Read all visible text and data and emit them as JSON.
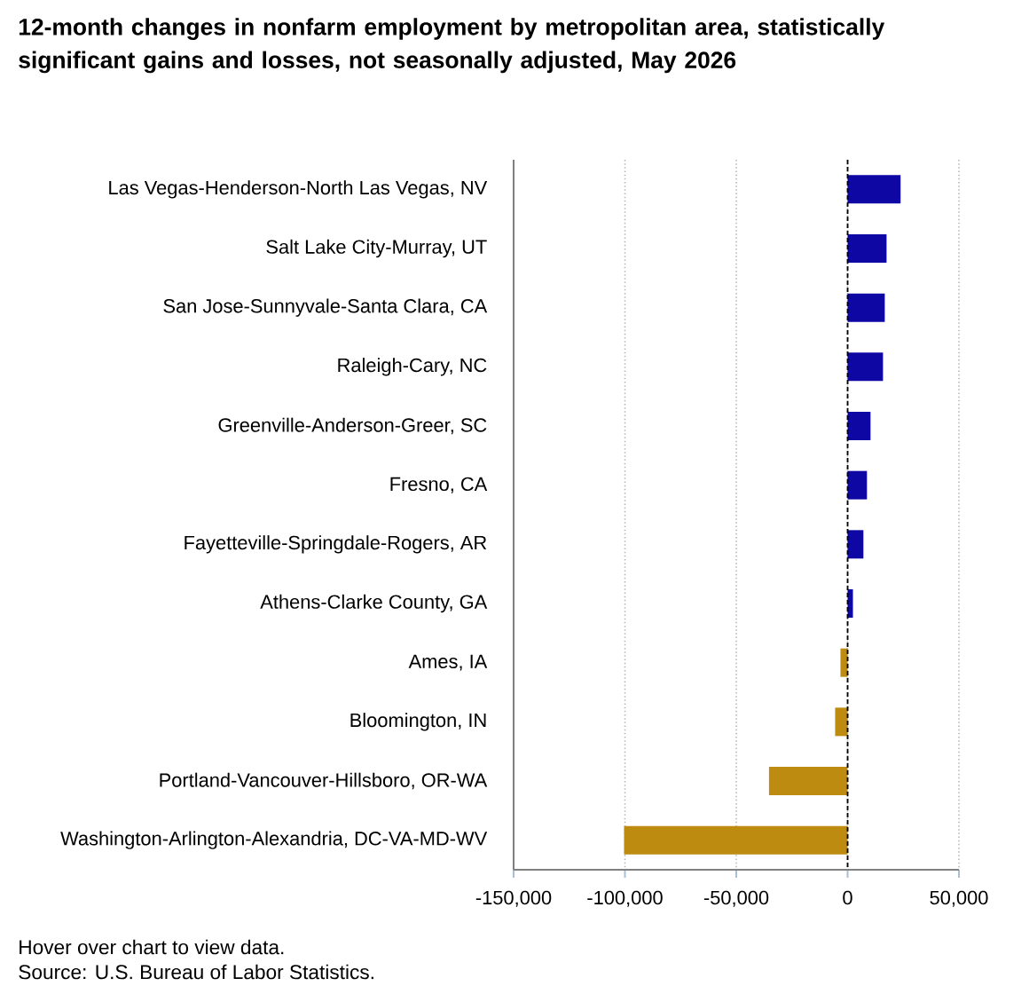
{
  "chart_data": {
    "type": "bar",
    "orientation": "horizontal",
    "title": "12-month changes in nonfarm employment by metropolitan area, statistically significant gains and losses, not seasonally adjusted, May 2026",
    "categories": [
      "Las Vegas-Henderson-North Las Vegas, NV",
      "Salt Lake City-Murray, UT",
      "San Jose-Sunnyvale-Santa Clara, CA",
      "Raleigh-Cary, NC",
      "Greenville-Anderson-Greer, SC",
      "Fresno, CA",
      "Fayetteville-Springdale-Rogers, AR",
      "Athens-Clarke County, GA",
      "Ames, IA",
      "Bloomington, IN",
      "Portland-Vancouver-Hillsboro, OR-WA",
      "Washington-Arlington-Alexandria, DC-VA-MD-WV"
    ],
    "values": [
      23800,
      17500,
      16700,
      15900,
      10300,
      8700,
      7100,
      2400,
      -3200,
      -5600,
      -35300,
      -100400
    ],
    "colors": [
      "#0f07a3",
      "#0f07a3",
      "#0f07a3",
      "#0f07a3",
      "#0f07a3",
      "#0f07a3",
      "#0f07a3",
      "#0f07a3",
      "#bd8b0f",
      "#bd8b0f",
      "#bd8b0f",
      "#bd8b0f"
    ],
    "xlim": [
      -150000,
      50000
    ],
    "xticks": [
      {
        "value": -150000,
        "label": "-150,000"
      },
      {
        "value": -100000,
        "label": "-100,000"
      },
      {
        "value": -50000,
        "label": "-50,000"
      },
      0,
      {
        "value": 50000,
        "label": "50,000"
      }
    ],
    "grid": "x",
    "ref_lines": [
      {
        "axis": "x",
        "value": 0,
        "color": "#000000",
        "line_style": "dashed"
      }
    ],
    "annotations": [
      "Hover over chart to view data.",
      "Source: U.S. Bureau of Labor Statistics."
    ]
  }
}
